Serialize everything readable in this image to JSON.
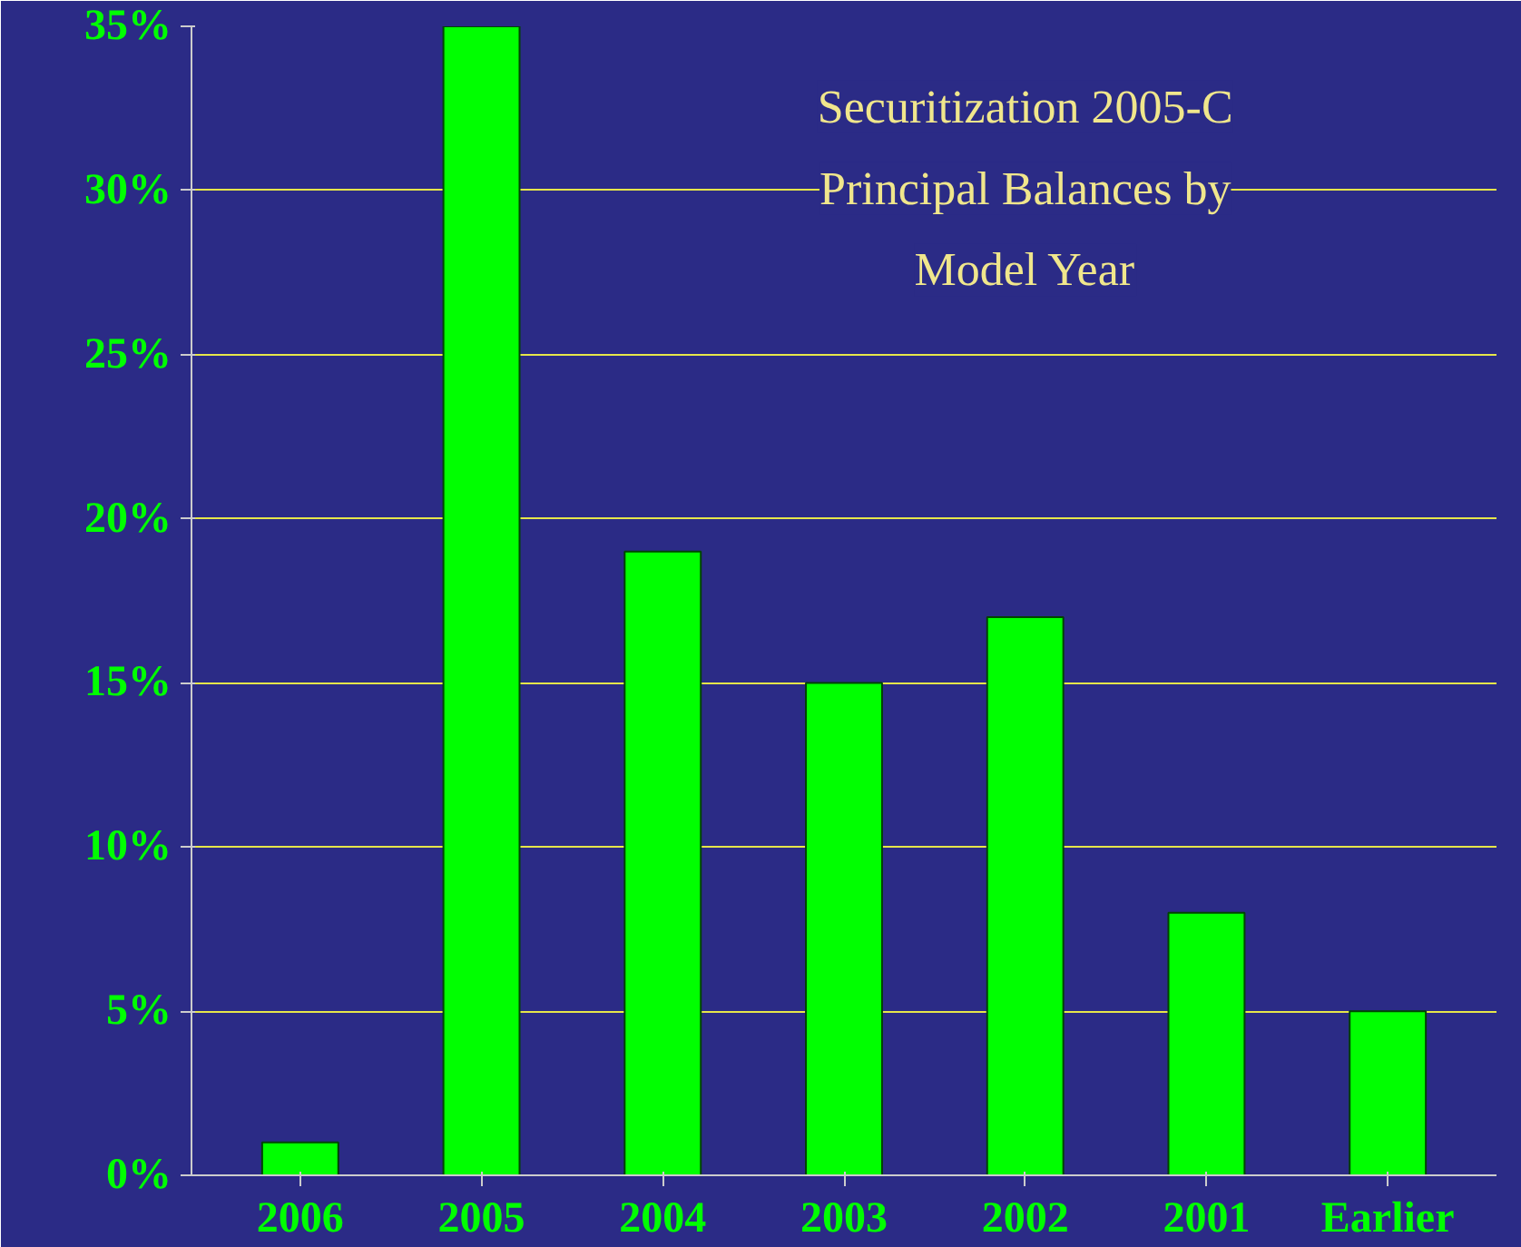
{
  "chart_data": {
    "type": "bar",
    "title": "Securitization 2005-C\nPrincipal Balances by\nModel Year",
    "categories": [
      "2006",
      "2005",
      "2004",
      "2003",
      "2002",
      "2001",
      "Earlier"
    ],
    "values": [
      1,
      35,
      19,
      15,
      17,
      8,
      5
    ],
    "color": "#00ff00",
    "ylim": [
      0,
      35
    ],
    "yticks": [
      {
        "value": 0,
        "label": "0%"
      },
      {
        "value": 5,
        "label": "5%"
      },
      {
        "value": 10,
        "label": "10%"
      },
      {
        "value": 15,
        "label": "15%"
      },
      {
        "value": 20,
        "label": "20%"
      },
      {
        "value": 25,
        "label": "25%"
      },
      {
        "value": 30,
        "label": "30%"
      },
      {
        "value": 35,
        "label": "35%"
      }
    ],
    "grid": "y"
  }
}
